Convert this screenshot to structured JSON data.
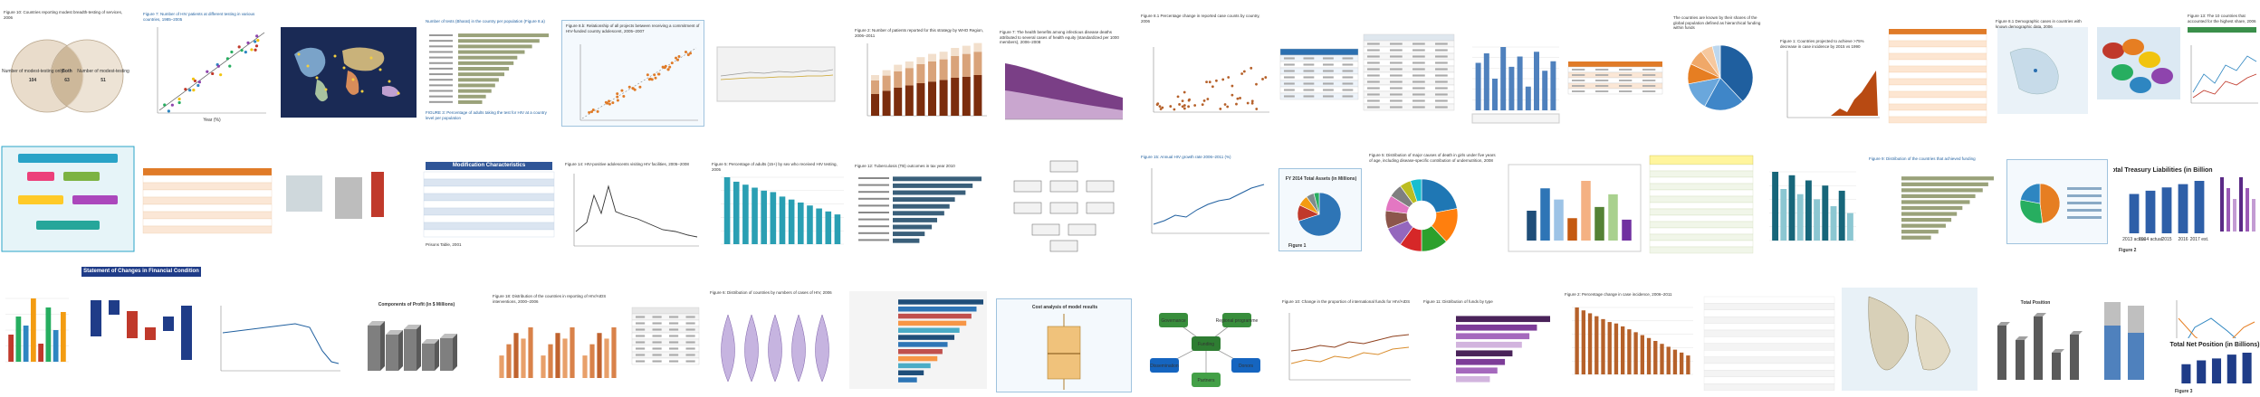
{
  "colors": {
    "bar_blue": "#4f81bd",
    "bar_dark": "#1f4e79",
    "bar_teal": "#2a9fb3",
    "bar_olive": "#9aa27a",
    "bar_purple": "#7a3f86",
    "bar_orange": "#e07b28",
    "bar_rust": "#b6612a",
    "caption_blue": "#1f5f9f",
    "title_navy": "#0d2a6e",
    "box_border": "#9fc3de"
  },
  "tiles": {
    "venn_title": "Figure 10: Countries reporting modest breadth-testing of services, 2006",
    "venn_left": "Number of modest-testing only",
    "venn_middle": "Both",
    "venn_right": "Number of modest-testing",
    "venn_left_value": "104",
    "venn_middle_value": "63",
    "venn_right_value": "51",
    "fig7_title": "Figure 7: Number of HIV patients at different testing in various countries, 1985–2005",
    "scatter_xlabel": "Year (%)",
    "world_map_note": "",
    "hbar_title": "Number of tests (Bharat) in the country per population (Figure 8.a)",
    "hbar_footnote": "FIGURE 3: Percentage of adults taking the test for HIV at a country level per population",
    "scatter_diag_title": "Figure 8.b: Relationship of all projects between receiving a commitment of HIV-funded country adolescent, 2005–2007",
    "scatter_diag_caption": "",
    "box_line_title": "",
    "stack_title": "Figure 2: Number of patients reported for this strategy by WHO Region, 2006–2011",
    "area_title": "Figure 7: The health benefits among infectious disease deaths attributed to several cases of health equity (standardized per 1000 members), 2006–2008",
    "dotscatter_title": "Figure 8.1 Percentage change in reported case counts by country, 2006",
    "table_small_title": "",
    "table_wide_title": "",
    "column_chart_title": "",
    "table_orange_title": "",
    "pie_blue_title": "The countries are known by their shares of the global population defined as hierarchical funding within funds",
    "line_orange_title": "Figure 1: Countries projected to achieve >75% decrease in case incidence by 2015 vs 1990",
    "table_orange2_title": "",
    "map_small_title": "Figure 8.1 Demographic cases in countries with known demographic data, 2006",
    "map_color_title": "",
    "line_multi_title": "",
    "figure_green_title": "Figure 13: The 10 countries that accounted for the highest share, 2006",
    "flow_title": "",
    "infobox_title": "",
    "bar3d_title": "",
    "mod_title": "Modification Characteristics",
    "mod_footnote": "Prisons Table, 2001",
    "line_peaks_title": "Figure 14: HIV-positive adolescents visiting HIV facilities, 2005–2008",
    "teal_bars_title": "Figure 5: Percentage of adults (15+) by sex who received HIV testing, 2005",
    "hbar_dark_title": "Figure 12: Tuberculosis (TB) outcomes in tax year 2010",
    "org_chart_title": "",
    "line_growth_title": "Figure 15: Annual HIV growth rate 2006–2011 (%)",
    "exploded_pie_title": "FY 2014 Total Assets (in Millions)",
    "exploded_pie_caption": "Figure 1",
    "donut_title": "Figure 5: Distribution of major causes of death in girls under five years of age, including disease-specific contribution of undernutrition, 2008",
    "multicolor_bars_title": "",
    "table_yellow_title": "",
    "teal_grouped_title": "",
    "line_blue2_title": "",
    "hbar_olive_title": "Figure 9: Distribution of the countries that achieved funding",
    "pie_box_title": "",
    "treasury_title": "Total Treasury Liabilities (in Billions)",
    "treasury_caption": "Figure 2",
    "treasury_labels": [
      "2013 actual",
      "2014 actual",
      "2015",
      "2016",
      "2017 est."
    ],
    "purple_lines_title": "",
    "hatched_bars_title": "",
    "waterfall_title": "Statement of Changes in Financial Condition",
    "line_year_title": "",
    "bar3d_gray_title": "Components of Profit (in $ Millions)",
    "small_multiples_title": "Figure 18: Distribution of the countries in reporting of HIV/AIDS interventions, 2000–2006",
    "table_small2_title": "",
    "violin_title": "Figure 6: Distribution of countries by numbers of cases of HIV, 2006",
    "hbar_rainbow_title": "",
    "boxplot_title": "Cost analysis of model results",
    "network_title": "",
    "network_nodes": [
      "Funding",
      "Governance",
      "Regional programme",
      "Dissemination",
      "Donors",
      "Partners"
    ],
    "brown_lines_title": "Figure 10: Change in the proportion of international funds for HIV/AIDS",
    "purple_hbar_title": "Figure 11: Distribution of funds by type",
    "orange_columns_title": "Figure 2: Percentage change in case incidence, 2006–2011",
    "data_table_title": "",
    "se_asia_map_title": "",
    "bar3d_region_title": "Total Position",
    "stacked_gray_title": "",
    "line_crossing_title": "",
    "net_position_title": "Total Net Position (in Billions)",
    "net_position_caption": "Figure 3"
  }
}
